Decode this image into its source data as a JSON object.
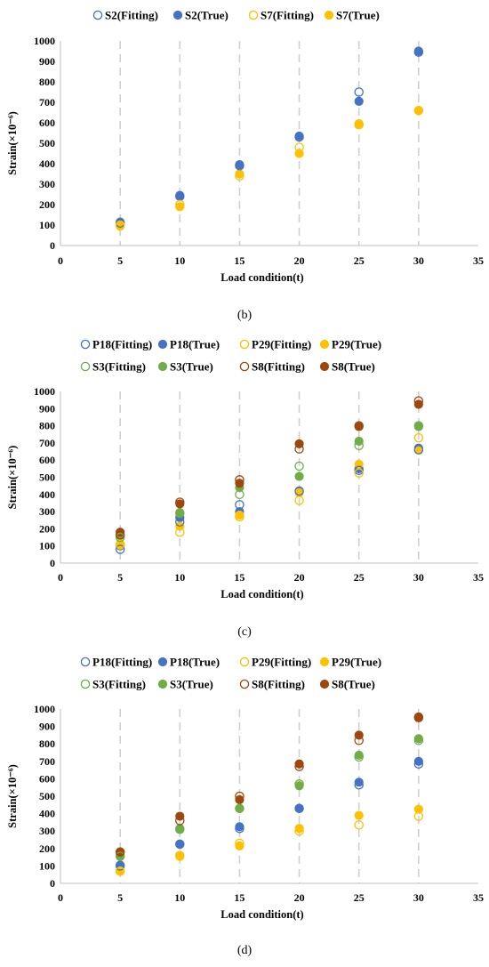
{
  "chart_data": [
    {
      "type": "scatter",
      "panel_label": "(b)",
      "xlabel": "Load condition(t)",
      "ylabel": "Strain(×10⁻⁶)",
      "xlim": [
        0,
        35
      ],
      "ylim": [
        0,
        1000
      ],
      "xticks": [
        "0",
        "5",
        "10",
        "15",
        "20",
        "25",
        "30",
        "35"
      ],
      "yticks": [
        "0",
        "100",
        "200",
        "300",
        "400",
        "500",
        "600",
        "700",
        "800",
        "900",
        "1000"
      ],
      "grid": "dashed vertical lines at x=5,10,15,20,25,30",
      "legend": "top",
      "series": [
        {
          "name": "S2(Fitting)",
          "color": "#4472C4",
          "marker": "hollow",
          "x": [
            5,
            10,
            15,
            20,
            25,
            30
          ],
          "y": [
            110,
            240,
            390,
            530,
            750,
            945
          ]
        },
        {
          "name": "S2(True)",
          "color": "#4472C4",
          "marker": "filled",
          "x": [
            5,
            10,
            15,
            20,
            25,
            30
          ],
          "y": [
            115,
            245,
            395,
            535,
            705,
            950
          ]
        },
        {
          "name": "S7(Fitting)",
          "color": "#FFC000",
          "marker": "hollow",
          "x": [
            5,
            10,
            15,
            20,
            25,
            30
          ],
          "y": [
            100,
            200,
            340,
            480,
            590,
            660
          ]
        },
        {
          "name": "S7(True)",
          "color": "#FFC000",
          "marker": "filled",
          "x": [
            5,
            10,
            15,
            20,
            25,
            30
          ],
          "y": [
            95,
            190,
            350,
            450,
            595,
            660
          ]
        }
      ]
    },
    {
      "type": "scatter",
      "panel_label": "(c)",
      "xlabel": "Load condition(t)",
      "ylabel": "Strain(×10⁻⁶)",
      "xlim": [
        0,
        35
      ],
      "ylim": [
        0,
        1000
      ],
      "xticks": [
        "0",
        "5",
        "10",
        "15",
        "20",
        "25",
        "30",
        "35"
      ],
      "yticks": [
        "0",
        "100",
        "200",
        "300",
        "400",
        "500",
        "600",
        "700",
        "800",
        "900",
        "1000"
      ],
      "grid": "dashed vertical lines at x=5,10,15,20,25,30",
      "legend": "top",
      "series": [
        {
          "name": "P18(Fitting)",
          "color": "#4472C4",
          "marker": "hollow",
          "x": [
            5,
            10,
            15,
            20,
            25,
            30
          ],
          "y": [
            80,
            240,
            340,
            420,
            540,
            660
          ]
        },
        {
          "name": "P18(True)",
          "color": "#4472C4",
          "marker": "filled",
          "x": [
            5,
            10,
            15,
            20,
            25,
            30
          ],
          "y": [
            100,
            265,
            300,
            420,
            550,
            670
          ]
        },
        {
          "name": "P29(Fitting)",
          "color": "#FFC000",
          "marker": "hollow",
          "x": [
            5,
            10,
            15,
            20,
            25,
            30
          ],
          "y": [
            110,
            180,
            270,
            365,
            525,
            730
          ]
        },
        {
          "name": "P29(True)",
          "color": "#FFC000",
          "marker": "filled",
          "x": [
            5,
            10,
            15,
            20,
            25,
            30
          ],
          "y": [
            105,
            215,
            280,
            410,
            575,
            660
          ]
        },
        {
          "name": "S3(Fitting)",
          "color": "#70AD47",
          "marker": "hollow",
          "x": [
            5,
            10,
            15,
            20,
            25,
            30
          ],
          "y": [
            150,
            290,
            400,
            565,
            685,
            800
          ]
        },
        {
          "name": "S3(True)",
          "color": "#70AD47",
          "marker": "filled",
          "x": [
            5,
            10,
            15,
            20,
            25,
            30
          ],
          "y": [
            160,
            295,
            440,
            505,
            710,
            795
          ]
        },
        {
          "name": "S8(Fitting)",
          "color": "#9E480E",
          "marker": "hollow",
          "x": [
            5,
            10,
            15,
            20,
            25,
            30
          ],
          "y": [
            165,
            355,
            485,
            665,
            800,
            945
          ]
        },
        {
          "name": "S8(True)",
          "color": "#9E480E",
          "marker": "filled",
          "x": [
            5,
            10,
            15,
            20,
            25,
            30
          ],
          "y": [
            180,
            345,
            465,
            695,
            795,
            925
          ]
        }
      ]
    },
    {
      "type": "scatter",
      "panel_label": "(d)",
      "xlabel": "Load condition(t)",
      "ylabel": "Strain(×10⁻⁶)",
      "xlim": [
        0,
        35
      ],
      "ylim": [
        0,
        1000
      ],
      "xticks": [
        "0",
        "5",
        "10",
        "15",
        "20",
        "25",
        "30",
        "35"
      ],
      "yticks": [
        "0",
        "100",
        "200",
        "300",
        "400",
        "500",
        "600",
        "700",
        "800",
        "900",
        "1000"
      ],
      "grid": "dashed vertical lines at x=5,10,15,20,25,30",
      "legend": "top",
      "series": [
        {
          "name": "P18(Fitting)",
          "color": "#4472C4",
          "marker": "hollow",
          "x": [
            5,
            10,
            15,
            20,
            25,
            30
          ],
          "y": [
            100,
            225,
            315,
            430,
            565,
            685
          ]
        },
        {
          "name": "P18(True)",
          "color": "#4472C4",
          "marker": "filled",
          "x": [
            5,
            10,
            15,
            20,
            25,
            30
          ],
          "y": [
            105,
            225,
            325,
            430,
            580,
            700
          ]
        },
        {
          "name": "P29(Fitting)",
          "color": "#FFC000",
          "marker": "hollow",
          "x": [
            5,
            10,
            15,
            20,
            25,
            30
          ],
          "y": [
            70,
            160,
            230,
            300,
            335,
            385
          ]
        },
        {
          "name": "P29(True)",
          "color": "#FFC000",
          "marker": "filled",
          "x": [
            5,
            10,
            15,
            20,
            25,
            30
          ],
          "y": [
            70,
            155,
            215,
            315,
            390,
            425
          ]
        },
        {
          "name": "S3(Fitting)",
          "color": "#70AD47",
          "marker": "hollow",
          "x": [
            5,
            10,
            15,
            20,
            25,
            30
          ],
          "y": [
            155,
            310,
            430,
            570,
            725,
            820
          ]
        },
        {
          "name": "S3(True)",
          "color": "#70AD47",
          "marker": "filled",
          "x": [
            5,
            10,
            15,
            20,
            25,
            30
          ],
          "y": [
            160,
            315,
            430,
            560,
            735,
            830
          ]
        },
        {
          "name": "S8(Fitting)",
          "color": "#9E480E",
          "marker": "hollow",
          "x": [
            5,
            10,
            15,
            20,
            25,
            30
          ],
          "y": [
            180,
            360,
            500,
            670,
            820,
            950
          ]
        },
        {
          "name": "S8(True)",
          "color": "#9E480E",
          "marker": "filled",
          "x": [
            5,
            10,
            15,
            20,
            25,
            30
          ],
          "y": [
            180,
            385,
            480,
            685,
            850,
            955
          ]
        }
      ]
    }
  ]
}
